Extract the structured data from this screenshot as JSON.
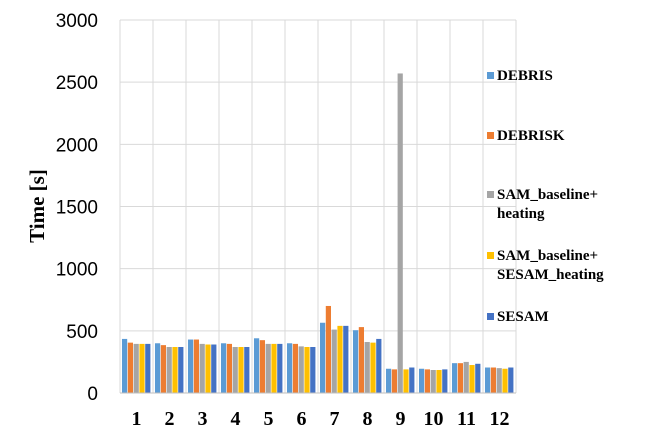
{
  "chart_data": {
    "type": "bar",
    "title": "",
    "xlabel": "",
    "ylabel": "Time [s]",
    "ylim": [
      0,
      3000
    ],
    "yticks": [
      0,
      500,
      1000,
      1500,
      2000,
      2500,
      3000
    ],
    "grid": true,
    "legend_position": "right",
    "categories": [
      "1",
      "2",
      "3",
      "4",
      "5",
      "6",
      "7",
      "8",
      "9",
      "10",
      "11",
      "12"
    ],
    "series": [
      {
        "name": "DEBRIS",
        "color": "#5B9BD5",
        "values": [
          435,
          400,
          430,
          400,
          440,
          400,
          565,
          505,
          195,
          195,
          240,
          205
        ]
      },
      {
        "name": "DEBRISK",
        "color": "#ED7D31",
        "values": [
          405,
          385,
          430,
          395,
          425,
          395,
          700,
          530,
          190,
          190,
          240,
          205
        ]
      },
      {
        "name": "SAM_baseline+\nheating",
        "color": "#A5A5A5",
        "values": [
          395,
          370,
          395,
          370,
          395,
          375,
          510,
          410,
          2570,
          185,
          250,
          200
        ]
      },
      {
        "name": "SAM_baseline+\nSESAM_heating",
        "color": "#FFC000",
        "values": [
          395,
          370,
          390,
          370,
          395,
          370,
          540,
          405,
          190,
          185,
          225,
          195
        ]
      },
      {
        "name": "SESAM",
        "color": "#4472C4",
        "values": [
          395,
          370,
          390,
          370,
          395,
          370,
          540,
          435,
          205,
          190,
          235,
          205
        ]
      }
    ]
  }
}
